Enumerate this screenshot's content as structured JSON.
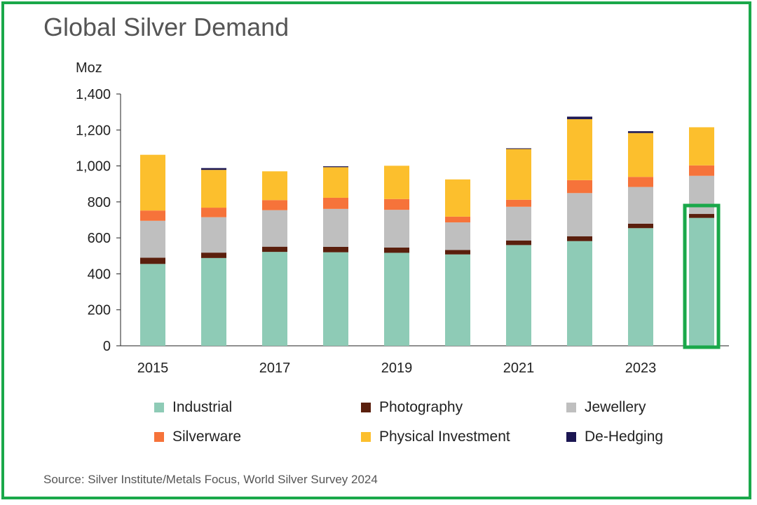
{
  "title": "Global Silver Demand",
  "unit_label": "Moz",
  "source": "Source: Silver Institute/Metals Focus, World Silver Survey 2024",
  "colors": {
    "industrial": "#8ecbb6",
    "photography": "#5a1f0d",
    "jewellery": "#bfbfbf",
    "silverware": "#f6733a",
    "physical_investment": "#fcbf2d",
    "de_hedging": "#1b1652",
    "highlight": "#1aa84a",
    "axis": "#222222"
  },
  "legend": [
    {
      "key": "industrial",
      "label": "Industrial"
    },
    {
      "key": "photography",
      "label": "Photography"
    },
    {
      "key": "jewellery",
      "label": "Jewellery"
    },
    {
      "key": "silverware",
      "label": "Silverware"
    },
    {
      "key": "physical_investment",
      "label": "Physical Investment"
    },
    {
      "key": "de_hedging",
      "label": "De-Hedging"
    }
  ],
  "chart_data": {
    "type": "bar",
    "stacked": true,
    "x": [
      2015,
      2016,
      2017,
      2018,
      2019,
      2020,
      2021,
      2022,
      2023,
      2024
    ],
    "x_tick_labels": [
      "2015",
      "",
      "2017",
      "",
      "2019",
      "",
      "2021",
      "",
      "2023",
      ""
    ],
    "ylim": [
      0,
      1400
    ],
    "y_ticks": [
      0,
      200,
      400,
      600,
      800,
      1000,
      1200,
      1400
    ],
    "y_tick_labels": [
      "0",
      "200",
      "400",
      "600",
      "800",
      "1,000",
      "1,200",
      "1,400"
    ],
    "ylabel": "Moz",
    "grid": false,
    "legend_position": "bottom",
    "highlighted_category": 2024,
    "series": [
      {
        "key": "industrial",
        "name": "Industrial",
        "values": [
          455,
          488,
          522,
          520,
          517,
          508,
          560,
          582,
          654,
          711
        ]
      },
      {
        "key": "photography",
        "name": "Photography",
        "values": [
          35,
          30,
          29,
          30,
          29,
          25,
          25,
          27,
          25,
          22
        ]
      },
      {
        "key": "jewellery",
        "name": "Jewellery",
        "values": [
          205,
          197,
          203,
          211,
          210,
          153,
          188,
          240,
          204,
          212
        ]
      },
      {
        "key": "silverware",
        "name": "Silverware",
        "values": [
          57,
          53,
          56,
          62,
          60,
          32,
          39,
          72,
          56,
          58
        ]
      },
      {
        "key": "physical_investment",
        "name": "Physical Investment",
        "values": [
          310,
          210,
          160,
          170,
          185,
          207,
          282,
          339,
          244,
          212
        ]
      },
      {
        "key": "de_hedging",
        "name": "De-Hedging",
        "values": [
          0,
          10,
          0,
          5,
          0,
          0,
          4,
          14,
          10,
          0
        ]
      }
    ]
  }
}
